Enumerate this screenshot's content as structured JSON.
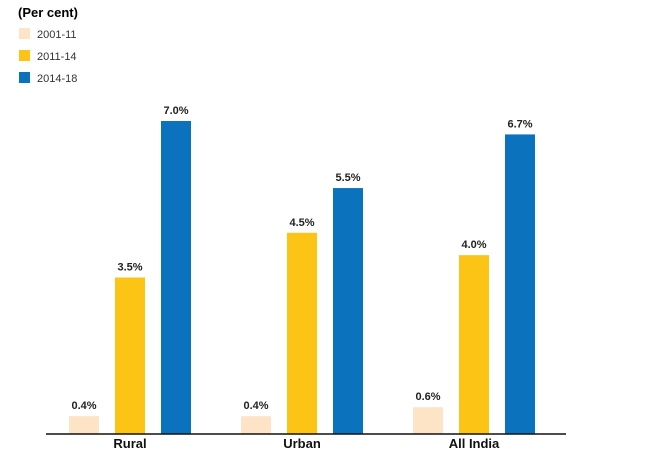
{
  "chart_data": {
    "type": "bar",
    "unit_label": "(Per cent)",
    "categories": [
      "Rural",
      "Urban",
      "All India"
    ],
    "series": [
      {
        "name": "2001-11",
        "color": "#fde4c7",
        "values": [
          0.4,
          0.4,
          0.6
        ],
        "labels": [
          "0.4%",
          "0.4%",
          "0.6%"
        ]
      },
      {
        "name": "2011-14",
        "color": "#fcc516",
        "values": [
          3.5,
          4.5,
          4.0
        ],
        "labels": [
          "3.5%",
          "4.5%",
          "4.0%"
        ]
      },
      {
        "name": "2014-18",
        "color": "#0b72be",
        "values": [
          7.0,
          5.5,
          6.7
        ],
        "labels": [
          "7.0%",
          "5.5%",
          "6.7%"
        ]
      }
    ],
    "ylim": [
      0,
      7.0
    ],
    "legend_position": "top-left",
    "grid": false
  }
}
